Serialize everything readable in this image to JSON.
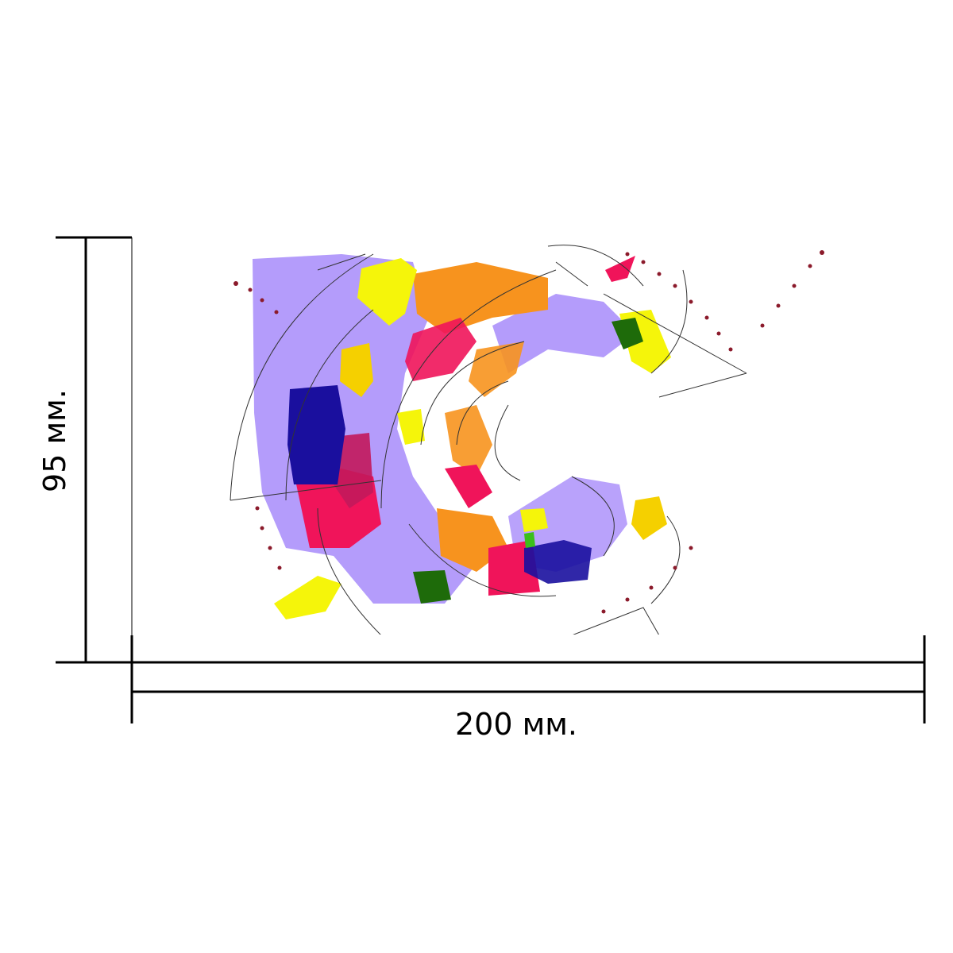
{
  "dimensions": {
    "width_label": "200 мм.",
    "height_label": "95 мм."
  },
  "colors": {
    "line": "#000000",
    "lavender": "#a78bfa",
    "magenta": "#f0145a",
    "crimson": "#c2185b",
    "orange": "#f7931e",
    "yellow": "#f5f50a",
    "gold": "#f5d000",
    "navy": "#1a0f9e",
    "green": "#1e6b0a",
    "dot": "#8b1a2b"
  }
}
